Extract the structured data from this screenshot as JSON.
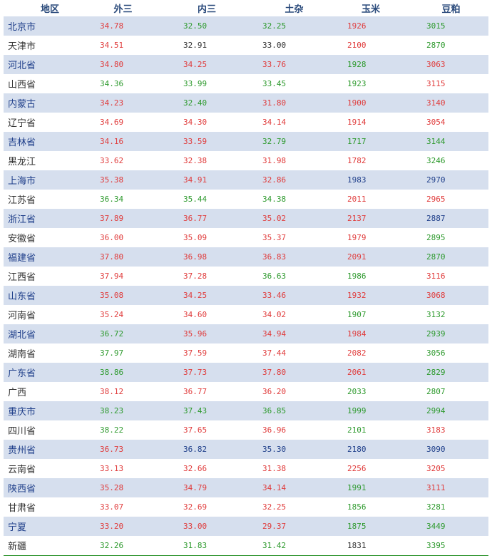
{
  "colors": {
    "up": "#e03c3c",
    "down": "#2e9a2e",
    "flat": "#333333",
    "blue": "#1f3f8a",
    "header": "#2a4a7b",
    "stripe": "#d6dfee"
  },
  "headers": [
    "地区",
    "外三",
    "内三",
    "土杂",
    "玉米",
    "豆粕"
  ],
  "rows": [
    {
      "region": "北京市",
      "region_color": "#1f3f8a",
      "cells": [
        {
          "v": "34.78",
          "c": "up"
        },
        {
          "v": "32.50",
          "c": "down"
        },
        {
          "v": "32.25",
          "c": "down"
        },
        {
          "v": "1926",
          "c": "up"
        },
        {
          "v": "3015",
          "c": "down"
        }
      ]
    },
    {
      "region": "天津市",
      "region_color": "#333333",
      "cells": [
        {
          "v": "34.51",
          "c": "up"
        },
        {
          "v": "32.91",
          "c": "flat"
        },
        {
          "v": "33.00",
          "c": "flat"
        },
        {
          "v": "2100",
          "c": "up"
        },
        {
          "v": "2870",
          "c": "down"
        }
      ]
    },
    {
      "region": "河北省",
      "region_color": "#1f3f8a",
      "cells": [
        {
          "v": "34.80",
          "c": "up"
        },
        {
          "v": "34.25",
          "c": "up"
        },
        {
          "v": "33.76",
          "c": "up"
        },
        {
          "v": "1928",
          "c": "down"
        },
        {
          "v": "3063",
          "c": "up"
        }
      ]
    },
    {
      "region": "山西省",
      "region_color": "#333333",
      "cells": [
        {
          "v": "34.36",
          "c": "down"
        },
        {
          "v": "33.99",
          "c": "down"
        },
        {
          "v": "33.45",
          "c": "down"
        },
        {
          "v": "1923",
          "c": "down"
        },
        {
          "v": "3115",
          "c": "up"
        }
      ]
    },
    {
      "region": "内蒙古",
      "region_color": "#1f3f8a",
      "cells": [
        {
          "v": "34.23",
          "c": "up"
        },
        {
          "v": "32.40",
          "c": "down"
        },
        {
          "v": "31.80",
          "c": "up"
        },
        {
          "v": "1900",
          "c": "up"
        },
        {
          "v": "3140",
          "c": "up"
        }
      ]
    },
    {
      "region": "辽宁省",
      "region_color": "#333333",
      "cells": [
        {
          "v": "34.69",
          "c": "up"
        },
        {
          "v": "34.30",
          "c": "up"
        },
        {
          "v": "34.14",
          "c": "up"
        },
        {
          "v": "1914",
          "c": "up"
        },
        {
          "v": "3054",
          "c": "up"
        }
      ]
    },
    {
      "region": "吉林省",
      "region_color": "#1f3f8a",
      "cells": [
        {
          "v": "34.16",
          "c": "up"
        },
        {
          "v": "33.59",
          "c": "up"
        },
        {
          "v": "32.79",
          "c": "down"
        },
        {
          "v": "1717",
          "c": "down"
        },
        {
          "v": "3144",
          "c": "down"
        }
      ]
    },
    {
      "region": "黑龙江",
      "region_color": "#333333",
      "cells": [
        {
          "v": "33.62",
          "c": "up"
        },
        {
          "v": "32.38",
          "c": "up"
        },
        {
          "v": "31.98",
          "c": "up"
        },
        {
          "v": "1782",
          "c": "up"
        },
        {
          "v": "3246",
          "c": "down"
        }
      ]
    },
    {
      "region": "上海市",
      "region_color": "#1f3f8a",
      "cells": [
        {
          "v": "35.38",
          "c": "up"
        },
        {
          "v": "34.91",
          "c": "up"
        },
        {
          "v": "32.86",
          "c": "up"
        },
        {
          "v": "1983",
          "c": "blue"
        },
        {
          "v": "2970",
          "c": "blue"
        }
      ]
    },
    {
      "region": "江苏省",
      "region_color": "#333333",
      "cells": [
        {
          "v": "36.34",
          "c": "down"
        },
        {
          "v": "35.44",
          "c": "down"
        },
        {
          "v": "34.38",
          "c": "down"
        },
        {
          "v": "2011",
          "c": "up"
        },
        {
          "v": "2965",
          "c": "up"
        }
      ]
    },
    {
      "region": "浙江省",
      "region_color": "#1f3f8a",
      "cells": [
        {
          "v": "37.89",
          "c": "up"
        },
        {
          "v": "36.77",
          "c": "up"
        },
        {
          "v": "35.02",
          "c": "up"
        },
        {
          "v": "2137",
          "c": "up"
        },
        {
          "v": "2887",
          "c": "blue"
        }
      ]
    },
    {
      "region": "安徽省",
      "region_color": "#333333",
      "cells": [
        {
          "v": "36.00",
          "c": "up"
        },
        {
          "v": "35.09",
          "c": "up"
        },
        {
          "v": "35.37",
          "c": "up"
        },
        {
          "v": "1979",
          "c": "up"
        },
        {
          "v": "2895",
          "c": "down"
        }
      ]
    },
    {
      "region": "福建省",
      "region_color": "#1f3f8a",
      "cells": [
        {
          "v": "37.80",
          "c": "up"
        },
        {
          "v": "36.98",
          "c": "up"
        },
        {
          "v": "36.83",
          "c": "up"
        },
        {
          "v": "2091",
          "c": "up"
        },
        {
          "v": "2870",
          "c": "down"
        }
      ]
    },
    {
      "region": "江西省",
      "region_color": "#333333",
      "cells": [
        {
          "v": "37.94",
          "c": "up"
        },
        {
          "v": "37.28",
          "c": "up"
        },
        {
          "v": "36.63",
          "c": "down"
        },
        {
          "v": "1986",
          "c": "down"
        },
        {
          "v": "3116",
          "c": "up"
        }
      ]
    },
    {
      "region": "山东省",
      "region_color": "#1f3f8a",
      "cells": [
        {
          "v": "35.08",
          "c": "up"
        },
        {
          "v": "34.25",
          "c": "up"
        },
        {
          "v": "33.46",
          "c": "up"
        },
        {
          "v": "1932",
          "c": "up"
        },
        {
          "v": "3068",
          "c": "up"
        }
      ]
    },
    {
      "region": "河南省",
      "region_color": "#333333",
      "cells": [
        {
          "v": "35.24",
          "c": "up"
        },
        {
          "v": "34.60",
          "c": "up"
        },
        {
          "v": "34.02",
          "c": "up"
        },
        {
          "v": "1907",
          "c": "down"
        },
        {
          "v": "3132",
          "c": "down"
        }
      ]
    },
    {
      "region": "湖北省",
      "region_color": "#1f3f8a",
      "cells": [
        {
          "v": "36.72",
          "c": "down"
        },
        {
          "v": "35.96",
          "c": "up"
        },
        {
          "v": "34.94",
          "c": "up"
        },
        {
          "v": "1984",
          "c": "up"
        },
        {
          "v": "2939",
          "c": "down"
        }
      ]
    },
    {
      "region": "湖南省",
      "region_color": "#333333",
      "cells": [
        {
          "v": "37.97",
          "c": "down"
        },
        {
          "v": "37.59",
          "c": "up"
        },
        {
          "v": "37.44",
          "c": "up"
        },
        {
          "v": "2082",
          "c": "up"
        },
        {
          "v": "3056",
          "c": "down"
        }
      ]
    },
    {
      "region": "广东省",
      "region_color": "#1f3f8a",
      "cells": [
        {
          "v": "38.86",
          "c": "down"
        },
        {
          "v": "37.73",
          "c": "up"
        },
        {
          "v": "37.80",
          "c": "up"
        },
        {
          "v": "2061",
          "c": "up"
        },
        {
          "v": "2829",
          "c": "down"
        }
      ]
    },
    {
      "region": "广西",
      "region_color": "#333333",
      "cells": [
        {
          "v": "38.12",
          "c": "up"
        },
        {
          "v": "36.77",
          "c": "up"
        },
        {
          "v": "36.20",
          "c": "up"
        },
        {
          "v": "2033",
          "c": "down"
        },
        {
          "v": "2807",
          "c": "down"
        }
      ]
    },
    {
      "region": "重庆市",
      "region_color": "#1f3f8a",
      "cells": [
        {
          "v": "38.23",
          "c": "down"
        },
        {
          "v": "37.43",
          "c": "down"
        },
        {
          "v": "36.85",
          "c": "down"
        },
        {
          "v": "1999",
          "c": "down"
        },
        {
          "v": "2994",
          "c": "down"
        }
      ]
    },
    {
      "region": "四川省",
      "region_color": "#333333",
      "cells": [
        {
          "v": "38.22",
          "c": "down"
        },
        {
          "v": "37.65",
          "c": "up"
        },
        {
          "v": "36.96",
          "c": "up"
        },
        {
          "v": "2101",
          "c": "down"
        },
        {
          "v": "3183",
          "c": "up"
        }
      ]
    },
    {
      "region": "贵州省",
      "region_color": "#1f3f8a",
      "cells": [
        {
          "v": "36.73",
          "c": "up"
        },
        {
          "v": "36.82",
          "c": "blue"
        },
        {
          "v": "35.30",
          "c": "blue"
        },
        {
          "v": "2180",
          "c": "blue"
        },
        {
          "v": "3090",
          "c": "blue"
        }
      ]
    },
    {
      "region": "云南省",
      "region_color": "#333333",
      "cells": [
        {
          "v": "33.13",
          "c": "up"
        },
        {
          "v": "32.66",
          "c": "up"
        },
        {
          "v": "31.38",
          "c": "up"
        },
        {
          "v": "2256",
          "c": "up"
        },
        {
          "v": "3205",
          "c": "up"
        }
      ]
    },
    {
      "region": "陕西省",
      "region_color": "#1f3f8a",
      "cells": [
        {
          "v": "35.28",
          "c": "up"
        },
        {
          "v": "34.79",
          "c": "up"
        },
        {
          "v": "34.14",
          "c": "up"
        },
        {
          "v": "1991",
          "c": "down"
        },
        {
          "v": "3111",
          "c": "up"
        }
      ]
    },
    {
      "region": "甘肃省",
      "region_color": "#333333",
      "cells": [
        {
          "v": "33.07",
          "c": "up"
        },
        {
          "v": "32.69",
          "c": "up"
        },
        {
          "v": "32.25",
          "c": "up"
        },
        {
          "v": "1856",
          "c": "down"
        },
        {
          "v": "3281",
          "c": "down"
        }
      ]
    },
    {
      "region": "宁夏",
      "region_color": "#1f3f8a",
      "cells": [
        {
          "v": "33.20",
          "c": "up"
        },
        {
          "v": "33.00",
          "c": "up"
        },
        {
          "v": "29.37",
          "c": "up"
        },
        {
          "v": "1875",
          "c": "down"
        },
        {
          "v": "3449",
          "c": "down"
        }
      ]
    },
    {
      "region": "新疆",
      "region_color": "#333333",
      "cells": [
        {
          "v": "32.26",
          "c": "down"
        },
        {
          "v": "31.83",
          "c": "down"
        },
        {
          "v": "31.42",
          "c": "down"
        },
        {
          "v": "1831",
          "c": "flat"
        },
        {
          "v": "3395",
          "c": "down"
        }
      ]
    }
  ]
}
